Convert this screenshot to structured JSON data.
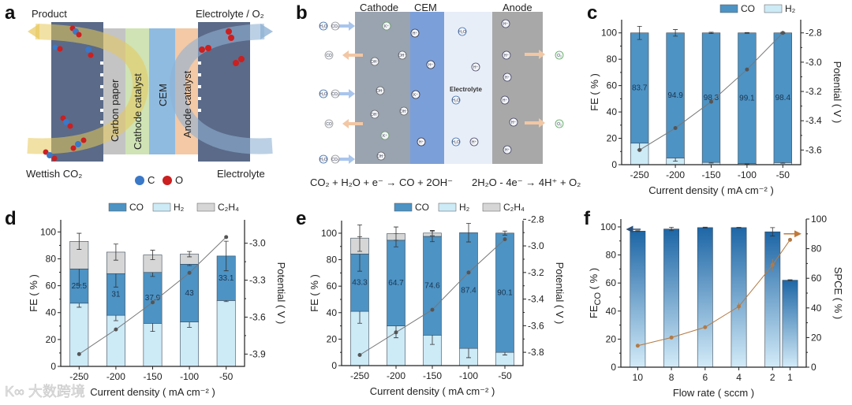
{
  "panel_letters": [
    "a",
    "b",
    "c",
    "d",
    "e",
    "f"
  ],
  "panel_a": {
    "labels": {
      "product": "Product",
      "electrolyte_o2": "Electrolyte / O₂",
      "wettish_co2": "Wettish CO₂",
      "electrolyte": "Electrolyte",
      "carbon_paper": "Carbon paper",
      "cathode_catalyst": "Cathode catalyst",
      "cem": "CEM",
      "anode_catalyst": "Anode catalyst"
    },
    "legend": {
      "c": "C",
      "o": "O"
    },
    "colors": {
      "plate": "#5a6a88",
      "carbon_paper": "#c4c4c4",
      "cathode_catalyst": "#cfe3b5",
      "cem": "#8fbbe0",
      "anode_catalyst": "#f3c9a6",
      "carbon": "#3a78c8",
      "oxygen": "#cc1f1f"
    }
  },
  "panel_b": {
    "regions": {
      "cathode": "Cathode",
      "cem": "CEM",
      "anode": "Anode",
      "electrolyte": "Electrolyte"
    },
    "equations": {
      "cathode": "CO₂ + H₂O + e⁻ → CO + 2OH⁻",
      "anode": "2H₂O - 4e⁻ → 4H⁺ + O₂"
    },
    "species": {
      "h2o": "H₂O",
      "co2": "CO₂",
      "co": "CO",
      "oh": "OH⁻",
      "h": "H⁺",
      "o2": "O₂",
      "k": "K⁺"
    }
  },
  "watermark": "大数跨境",
  "chart_data": [
    {
      "panel": "c",
      "type": "bar",
      "stacked": true,
      "categories": [
        "-250",
        "-200",
        "-150",
        "-100",
        "-50"
      ],
      "series": [
        {
          "name": "H₂",
          "values": [
            16.3,
            5.1,
            1.7,
            0.9,
            1.6
          ],
          "errors": [
            5,
            2.5,
            0.5,
            0.3,
            0.5
          ],
          "color": "#cdeaf7"
        },
        {
          "name": "CO",
          "values": [
            83.7,
            94.9,
            98.3,
            99.1,
            98.4
          ],
          "labels": [
            "83.7",
            "94.9",
            "98.3",
            "99.1",
            "98.4"
          ],
          "errors": [
            5,
            2.5,
            0.5,
            0.3,
            0.5
          ],
          "color": "#4d93c4"
        }
      ],
      "legend_order": [
        "CO",
        "H₂"
      ],
      "line": {
        "name": "Potential",
        "values": [
          -3.6,
          -3.45,
          -3.27,
          -3.05,
          -2.8
        ],
        "color": "#777777",
        "axis": "right"
      },
      "xlabel": "Current density ( mA cm⁻² )",
      "ylabel": "FE ( % )",
      "y2label": "Potential ( V )",
      "ylim": [
        0,
        110
      ],
      "y2lim": [
        -3.7,
        -2.71
      ],
      "yticks": [
        "0",
        "20",
        "40",
        "60",
        "80",
        "100"
      ],
      "y2ticks": [
        "-3.6",
        "-3.4",
        "-3.2",
        "-3.0",
        "-2.8"
      ],
      "legend_position": "top-right"
    },
    {
      "panel": "d",
      "type": "bar",
      "stacked": true,
      "categories": [
        "-250",
        "-200",
        "-150",
        "-100",
        "-50"
      ],
      "series": [
        {
          "name": "H₂",
          "values": [
            47,
            38,
            32,
            33,
            49
          ],
          "errors": [
            3,
            4,
            6,
            4,
            0.8
          ],
          "color": "#cdeaf7"
        },
        {
          "name": "CO",
          "values": [
            25.5,
            31,
            37.9,
            43,
            33.1
          ],
          "labels": [
            "25.5",
            "31",
            "37.9",
            "43",
            "33.1"
          ],
          "errors": [
            12,
            10,
            3,
            1,
            11
          ],
          "color": "#4d93c4"
        },
        {
          "name": "C₂H₄",
          "values": [
            20.5,
            16,
            13,
            7.5,
            0
          ],
          "errors": [
            6,
            6,
            3.5,
            2,
            0
          ],
          "color": "#d6d6d6"
        }
      ],
      "legend_order": [
        "CO",
        "H₂",
        "C₂H₄"
      ],
      "line": {
        "name": "Potential",
        "values": [
          -3.9,
          -3.7,
          -3.48,
          -3.24,
          -2.95
        ],
        "color": "#777777",
        "axis": "right"
      },
      "xlabel": "Current density ( mA cm⁻² )",
      "ylabel": "FE ( % )",
      "y2label": "Potential ( V )",
      "ylim": [
        0,
        109
      ],
      "y2lim": [
        -4.0,
        -2.81
      ],
      "yticks": [
        "0",
        "20",
        "40",
        "60",
        "80",
        "100"
      ],
      "y2ticks": [
        "-3.9",
        "-3.6",
        "-3.3",
        "-3.0"
      ],
      "legend_position": "top"
    },
    {
      "panel": "e",
      "type": "bar",
      "stacked": true,
      "categories": [
        "-250",
        "-200",
        "-150",
        "-100",
        "-50"
      ],
      "series": [
        {
          "name": "H₂",
          "values": [
            41,
            30,
            23,
            13,
            10
          ],
          "errors": [
            9,
            9,
            7,
            7,
            2
          ],
          "color": "#cdeaf7"
        },
        {
          "name": "CO",
          "values": [
            43.3,
            64.7,
            74.6,
            87.4,
            90.1
          ],
          "labels": [
            "43.3",
            "64.7",
            "74.6",
            "87.4",
            "90.1"
          ],
          "errors": [
            13,
            5,
            4,
            7,
            1.5
          ],
          "color": "#4d93c4"
        },
        {
          "name": "C₂H₄",
          "values": [
            12,
            5,
            2.5,
            0,
            0
          ],
          "errors": [
            10,
            5,
            2,
            0,
            0
          ],
          "color": "#d6d6d6"
        }
      ],
      "legend_order": [
        "CO",
        "H₂",
        "C₂H₄"
      ],
      "line": {
        "name": "Potential",
        "values": [
          -3.82,
          -3.65,
          -3.48,
          -3.2,
          -2.95
        ],
        "color": "#777777",
        "axis": "right"
      },
      "xlabel": "Current density ( mA cm⁻² )",
      "ylabel": "FE ( % )",
      "y2label": "Potential ( V )",
      "ylim": [
        0,
        109.5
      ],
      "y2lim": [
        -3.9,
        -2.81
      ],
      "yticks": [
        "0",
        "20",
        "40",
        "60",
        "80",
        "100"
      ],
      "y2ticks": [
        "-3.8",
        "-3.6",
        "-3.4",
        "-3.2",
        "-3.0",
        "-2.8"
      ],
      "legend_position": "top"
    },
    {
      "panel": "f",
      "type": "bar",
      "stacked": false,
      "categories": [
        "10",
        "8",
        "6",
        "4",
        "2",
        "1"
      ],
      "series": [
        {
          "name": "FE_CO",
          "values": [
            97,
            98.5,
            99.5,
            99.5,
            96.5,
            62
          ],
          "errors": [
            0.3,
            1.2,
            0.3,
            0.2,
            3,
            0.3
          ],
          "gradient": [
            "#1d66a6",
            "#d3ebf8"
          ]
        }
      ],
      "line": {
        "name": "SPCE",
        "values": [
          14.5,
          20,
          27,
          41,
          69,
          86
        ],
        "errors": [
          0.8,
          0.8,
          0.8,
          2.5,
          4,
          1
        ],
        "color": "#b37a45",
        "axis": "right"
      },
      "xlabel": "Flow rate ( sccm )",
      "ylabel": "FE",
      "ylabel_sub": "CO",
      "ylabel_unit": " ( % )",
      "y2label": "SPCE ( % )",
      "ylim": [
        0,
        105.6
      ],
      "y2lim": [
        0,
        100
      ],
      "yticks": [
        "0",
        "20",
        "40",
        "60",
        "80",
        "100"
      ],
      "y2ticks": [
        "0",
        "20",
        "40",
        "60",
        "80",
        "100"
      ],
      "ylabel_color": "#2e6f8e",
      "y2label_color": "#a87643"
    }
  ]
}
